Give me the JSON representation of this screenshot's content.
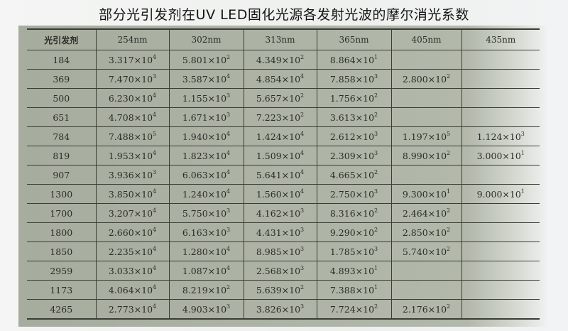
{
  "title": "部分光引发剂在UV LED固化光源各发射光波的摩尔消光系数",
  "table": {
    "headers": [
      "光引发剂",
      "254nm",
      "302nm",
      "313nm",
      "365nm",
      "405nm",
      "435nm"
    ],
    "rows": [
      {
        "id": "184",
        "cells": [
          {
            "m": "3.317",
            "e": "4"
          },
          {
            "m": "5.801",
            "e": "2"
          },
          {
            "m": "4.349",
            "e": "2"
          },
          {
            "m": "8.864",
            "e": "1"
          },
          null,
          null
        ]
      },
      {
        "id": "369",
        "cells": [
          {
            "m": "7.470",
            "e": "3"
          },
          {
            "m": "3.587",
            "e": "4"
          },
          {
            "m": "4.854",
            "e": "4"
          },
          {
            "m": "7.858",
            "e": "3"
          },
          {
            "m": "2.800",
            "e": "2"
          },
          null
        ]
      },
      {
        "id": "500",
        "cells": [
          {
            "m": "6.230",
            "e": "4"
          },
          {
            "m": "1.155",
            "e": "3"
          },
          {
            "m": "5.657",
            "e": "2"
          },
          {
            "m": "1.756",
            "e": "2"
          },
          null,
          null
        ]
      },
      {
        "id": "651",
        "cells": [
          {
            "m": "4.708",
            "e": "4"
          },
          {
            "m": "1.671",
            "e": "3"
          },
          {
            "m": "7.223",
            "e": "2"
          },
          {
            "m": "3.613",
            "e": "2"
          },
          null,
          null
        ]
      },
      {
        "id": "784",
        "cells": [
          {
            "m": "7.488",
            "e": "5"
          },
          {
            "m": "1.940",
            "e": "4"
          },
          {
            "m": "1.424",
            "e": "4"
          },
          {
            "m": "2.612",
            "e": "3"
          },
          {
            "m": "1.197",
            "e": "5"
          },
          {
            "m": "1.124",
            "e": "3"
          }
        ]
      },
      {
        "id": "819",
        "cells": [
          {
            "m": "1.953",
            "e": "4"
          },
          {
            "m": "1.823",
            "e": "4"
          },
          {
            "m": "1.509",
            "e": "4"
          },
          {
            "m": "2.309",
            "e": "3"
          },
          {
            "m": "8.990",
            "e": "2"
          },
          {
            "m": "3.000",
            "e": "1"
          }
        ]
      },
      {
        "id": "907",
        "cells": [
          {
            "m": "3.936",
            "e": "3"
          },
          {
            "m": "6.063",
            "e": "4"
          },
          {
            "m": "5.641",
            "e": "4"
          },
          {
            "m": "4.665",
            "e": "2"
          },
          null,
          null
        ]
      },
      {
        "id": "1300",
        "cells": [
          {
            "m": "3.850",
            "e": "4"
          },
          {
            "m": "1.240",
            "e": "4"
          },
          {
            "m": "1.560",
            "e": "4"
          },
          {
            "m": "2.750",
            "e": "3"
          },
          {
            "m": "9.300",
            "e": "1"
          },
          {
            "m": "9.000",
            "e": "1"
          }
        ]
      },
      {
        "id": "1700",
        "cells": [
          {
            "m": "3.207",
            "e": "4"
          },
          {
            "m": "5.750",
            "e": "3"
          },
          {
            "m": "4.162",
            "e": "3"
          },
          {
            "m": "8.316",
            "e": "2"
          },
          {
            "m": "2.464",
            "e": "2"
          },
          null
        ]
      },
      {
        "id": "1800",
        "cells": [
          {
            "m": "2.660",
            "e": "4"
          },
          {
            "m": "6.163",
            "e": "3"
          },
          {
            "m": "4.431",
            "e": "3"
          },
          {
            "m": "9.290",
            "e": "2"
          },
          {
            "m": "2.850",
            "e": "2"
          },
          null
        ]
      },
      {
        "id": "1850",
        "cells": [
          {
            "m": "2.235",
            "e": "4"
          },
          {
            "m": "1.280",
            "e": "4"
          },
          {
            "m": "8.985",
            "e": "3"
          },
          {
            "m": "1.785",
            "e": "3"
          },
          {
            "m": "5.740",
            "e": "2"
          },
          null
        ]
      },
      {
        "id": "2959",
        "cells": [
          {
            "m": "3.033",
            "e": "4"
          },
          {
            "m": "1.087",
            "e": "4"
          },
          {
            "m": "2.568",
            "e": "3"
          },
          {
            "m": "4.893",
            "e": "1"
          },
          null,
          null
        ]
      },
      {
        "id": "1173",
        "cells": [
          {
            "m": "4.064",
            "e": "4"
          },
          {
            "m": "8.219",
            "e": "2"
          },
          {
            "m": "5.639",
            "e": "2"
          },
          {
            "m": "7.388",
            "e": "1"
          },
          null,
          null
        ]
      },
      {
        "id": "4265",
        "cells": [
          {
            "m": "2.773",
            "e": "4"
          },
          {
            "m": "4.903",
            "e": "3"
          },
          {
            "m": "3.826",
            "e": "3"
          },
          {
            "m": "7.724",
            "e": "2"
          },
          {
            "m": "2.176",
            "e": "2"
          },
          null
        ]
      }
    ]
  }
}
